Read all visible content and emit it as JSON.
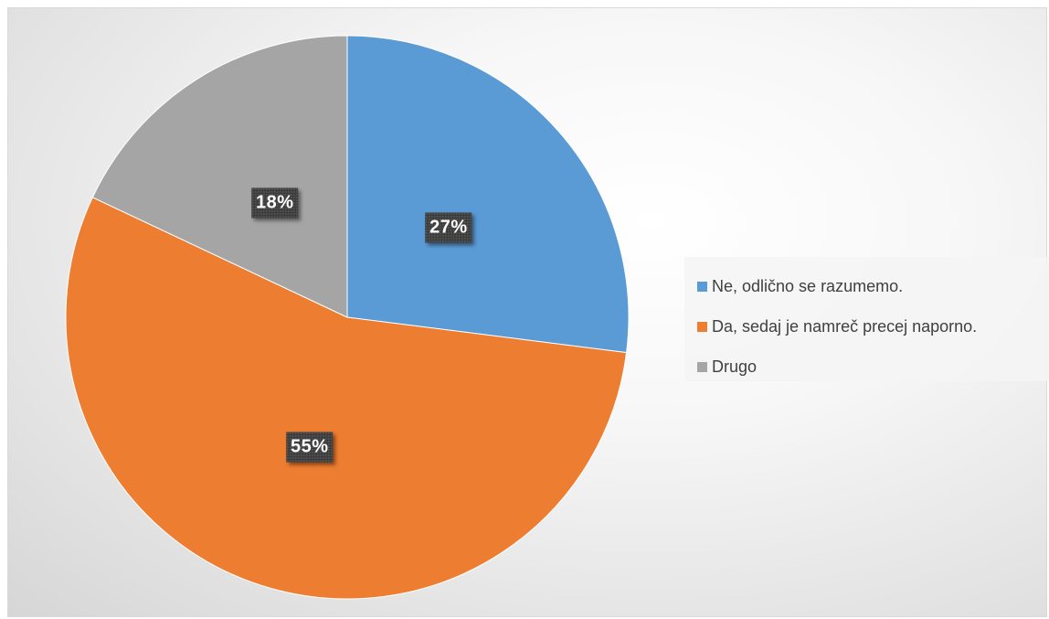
{
  "chart_data": {
    "type": "pie",
    "title": "",
    "categories": [
      "Ne, odlično se razumemo.",
      "Da, sedaj je namreč precej naporno.",
      "Drugo"
    ],
    "values": [
      27,
      55,
      18
    ],
    "data_labels": [
      "27%",
      "55%",
      "18%"
    ],
    "colors": [
      "#5b9bd5",
      "#ed7d31",
      "#a5a5a5"
    ],
    "legend_position": "right",
    "start_angle_deg": 0,
    "direction": "clockwise"
  }
}
